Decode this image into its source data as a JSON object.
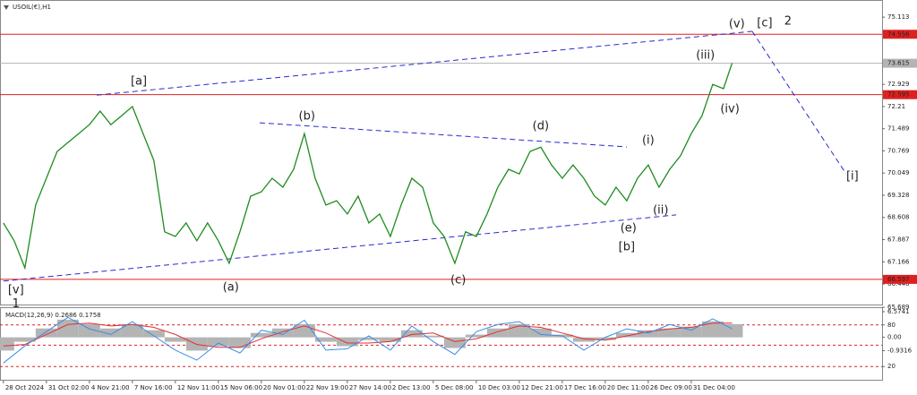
{
  "chart_data": [
    {
      "type": "line",
      "title": "USOIL(€),H1",
      "xlim": [
        -0.08,
        20.44
      ],
      "ylim": [
        65.75,
        75.64
      ],
      "xticks": [
        {
          "value": 0,
          "label": "28 Oct 2024"
        },
        {
          "value": 1,
          "label": "31 Oct 02:00"
        },
        {
          "value": 2,
          "label": "4 Nov 21:00"
        },
        {
          "value": 3,
          "label": "7 Nov 16:00"
        },
        {
          "value": 4,
          "label": "12 Nov 11:00"
        },
        {
          "value": 5,
          "label": "15 Nov 06:00"
        },
        {
          "value": 6,
          "label": "20 Nov 01:00"
        },
        {
          "value": 7,
          "label": "22 Nov 19:00"
        },
        {
          "value": 8,
          "label": "27 Nov 14:00"
        },
        {
          "value": 9,
          "label": "2 Dec 13:00"
        },
        {
          "value": 10,
          "label": "5 Dec 08:00"
        },
        {
          "value": 11,
          "label": "10 Dec 03:00"
        },
        {
          "value": 12,
          "label": "12 Dec 21:00"
        },
        {
          "value": 13,
          "label": "17 Dec 16:00"
        },
        {
          "value": 14,
          "label": "20 Dec 11:00"
        },
        {
          "value": 15,
          "label": "26 Dec 09:00"
        },
        {
          "value": 16,
          "label": "31 Dec 04:00"
        }
      ],
      "yticks": [
        75.113,
        72.929,
        72.21,
        71.489,
        70.769,
        70.049,
        69.328,
        68.608,
        67.887,
        67.166,
        66.446,
        65.689
      ],
      "x": [
        0,
        0.25,
        0.5,
        0.75,
        1,
        1.25,
        1.5,
        1.75,
        2,
        2.25,
        2.5,
        2.75,
        3,
        3.25,
        3.5,
        3.75,
        4,
        4.25,
        4.5,
        4.75,
        5,
        5.25,
        5.5,
        5.75,
        6,
        6.25,
        6.5,
        6.75,
        7,
        7.25,
        7.5,
        7.75,
        8,
        8.25,
        8.5,
        8.75,
        9,
        9.25,
        9.5,
        9.75,
        10,
        10.25,
        10.5,
        10.75,
        11,
        11.25,
        11.5,
        11.75,
        12,
        12.25,
        12.5,
        12.75,
        13,
        13.25,
        13.5,
        13.75,
        14,
        14.25,
        14.5,
        14.75,
        15,
        15.25,
        15.5,
        15.75,
        16,
        16.25,
        16.5,
        16.75,
        16.95
      ],
      "series": [
        {
          "color": "#1e8c1e",
          "values": [
            68.43,
            67.85,
            66.97,
            69.01,
            69.88,
            70.75,
            71.04,
            71.33,
            71.62,
            72.06,
            71.62,
            71.91,
            72.21,
            71.33,
            70.46,
            68.14,
            67.99,
            68.43,
            67.85,
            68.43,
            67.85,
            67.12,
            68.14,
            69.3,
            69.44,
            69.88,
            69.59,
            70.17,
            71.33,
            69.88,
            69.01,
            69.15,
            68.72,
            69.3,
            68.43,
            68.72,
            67.99,
            69.01,
            69.88,
            69.59,
            68.43,
            67.99,
            67.12,
            68.14,
            67.99,
            68.72,
            69.59,
            70.17,
            70.02,
            70.75,
            70.89,
            70.31,
            69.88,
            70.31,
            69.88,
            69.3,
            69.01,
            69.59,
            69.15,
            69.88,
            70.31,
            69.59,
            70.17,
            70.61,
            71.33,
            71.91,
            72.93,
            72.79,
            73.62
          ]
        }
      ],
      "levels": [
        {
          "value": 74.556,
          "color": "#e02020"
        },
        {
          "value": 73.615,
          "color": "#b4b4b4"
        },
        {
          "value": 72.595,
          "color": "#e02020"
        },
        {
          "value": 66.597,
          "color": "#e02020"
        }
      ],
      "trend_lines": [
        {
          "color": "#2a2ad0",
          "x": [
            2.17,
            17.42
          ],
          "y": [
            72.58,
            74.65
          ]
        },
        {
          "color": "#2a2ad0",
          "x": [
            5.96,
            14.5
          ],
          "y": [
            71.68,
            70.9
          ]
        },
        {
          "color": "#2a2ad0",
          "x": [
            0,
            15.65
          ],
          "y": [
            66.54,
            68.69
          ]
        },
        {
          "color": "#2a2ad0",
          "x": [
            17.42,
            19.6
          ],
          "y": [
            74.65,
            70.03
          ]
        }
      ],
      "annotations": [
        {
          "text": "[a]",
          "x": 3.15,
          "y": 73.02,
          "color": "#2e8b2e"
        },
        {
          "text": "(b)",
          "x": 7.06,
          "y": 71.89,
          "color": "#2a2ad0"
        },
        {
          "text": "(d)",
          "x": 12.5,
          "y": 71.57,
          "color": "#2a2ad0"
        },
        {
          "text": "(i)",
          "x": 15.0,
          "y": 71.1,
          "color": "#2a2ad0"
        },
        {
          "text": "(iii)",
          "x": 16.33,
          "y": 73.86,
          "color": "#2a2ad0"
        },
        {
          "text": "(v)",
          "x": 17.06,
          "y": 74.88,
          "color": "#2a2ad0"
        },
        {
          "text": "[c]",
          "x": 17.71,
          "y": 74.91,
          "color": "#2e8b2e"
        },
        {
          "text": "2",
          "x": 18.25,
          "y": 74.97,
          "color": "#2a2ad0"
        },
        {
          "text": "(iv)",
          "x": 16.9,
          "y": 72.12,
          "color": "#2a2ad0"
        },
        {
          "text": "(ii)",
          "x": 15.29,
          "y": 68.83,
          "color": "#2a2ad0"
        },
        {
          "text": "(e)",
          "x": 14.54,
          "y": 68.25,
          "color": "#2a2ad0"
        },
        {
          "text": "[b]",
          "x": 14.5,
          "y": 67.64,
          "color": "#2e8b2e"
        },
        {
          "text": "(a)",
          "x": 5.29,
          "y": 66.33,
          "color": "#2a2ad0"
        },
        {
          "text": "(c)",
          "x": 10.58,
          "y": 66.56,
          "color": "#2a2ad0"
        },
        {
          "text": "[v]",
          "x": 0.29,
          "y": 66.25,
          "color": "#2e8b2e"
        },
        {
          "text": "1",
          "x": 0.29,
          "y": 65.8,
          "color": "#2a2ad0"
        },
        {
          "text": "[i]",
          "x": 19.75,
          "y": 69.94,
          "color": "#2e8b2e"
        }
      ]
    },
    {
      "type": "macd",
      "title": "MACD(12,26,9) 0.2686 0.1758",
      "xlim": [
        -0.08,
        20.44
      ],
      "ylim": [
        -3.04,
        2.05
      ],
      "yticks": [
        {
          "value": 1.8,
          "label": "6.5741"
        },
        {
          "value": 0.87,
          "label": "80"
        },
        {
          "value": 0,
          "label": "0.00"
        },
        -0.9316,
        {
          "value": -2.05,
          "label": "20"
        }
      ],
      "levels": [
        {
          "value": 0.87,
          "color": "#e02020"
        },
        {
          "value": -0.55,
          "color": "#e02020"
        },
        {
          "value": -2.05,
          "color": "#e02020"
        }
      ],
      "x": [
        0,
        0.5,
        1,
        1.5,
        2,
        2.5,
        3,
        3.5,
        4,
        4.5,
        5,
        5.5,
        6,
        6.5,
        7,
        7.5,
        8,
        8.5,
        9,
        9.5,
        10,
        10.5,
        11,
        11.5,
        12,
        12.5,
        13,
        13.5,
        14,
        14.5,
        15,
        15.5,
        16,
        16.5,
        16.95
      ],
      "series": [
        {
          "color": "#b4b4b4",
          "values": [
            -0.93,
            -0.31,
            0.62,
            1.24,
            0.93,
            0.62,
            0.93,
            0.5,
            -0.31,
            -0.93,
            -0.62,
            -0.75,
            0.31,
            0.62,
            0.93,
            -0.31,
            -0.62,
            -0.19,
            -0.31,
            0.5,
            0.12,
            -0.75,
            0.19,
            0.62,
            0.93,
            0.62,
            0.19,
            -0.31,
            -0.19,
            0.31,
            0.5,
            0.62,
            0.75,
            1.12,
            0.93
          ]
        },
        {
          "color": "#e03030",
          "values": [
            -0.6,
            -0.5,
            0.2,
            0.9,
            1.0,
            0.8,
            0.9,
            0.7,
            0.2,
            -0.5,
            -0.7,
            -0.7,
            -0.1,
            0.4,
            0.8,
            0.3,
            -0.4,
            -0.4,
            -0.3,
            0.2,
            0.3,
            -0.3,
            -0.1,
            0.4,
            0.8,
            0.7,
            0.3,
            -0.1,
            -0.2,
            0.1,
            0.4,
            0.6,
            0.7,
            1.0,
            1.0
          ]
        },
        {
          "color": "#3a8ee6",
          "values": [
            -1.8,
            -0.6,
            0.4,
            1.4,
            0.6,
            0.2,
            1.1,
            0.1,
            -0.9,
            -1.6,
            -0.4,
            -1.1,
            0.5,
            0.2,
            1.2,
            -0.9,
            -0.8,
            0.1,
            -0.9,
            0.8,
            -0.3,
            -1.2,
            0.4,
            0.9,
            1.1,
            0.2,
            0.1,
            -0.9,
            0.0,
            0.6,
            0.3,
            0.9,
            0.5,
            1.3,
            0.6
          ]
        }
      ]
    }
  ]
}
